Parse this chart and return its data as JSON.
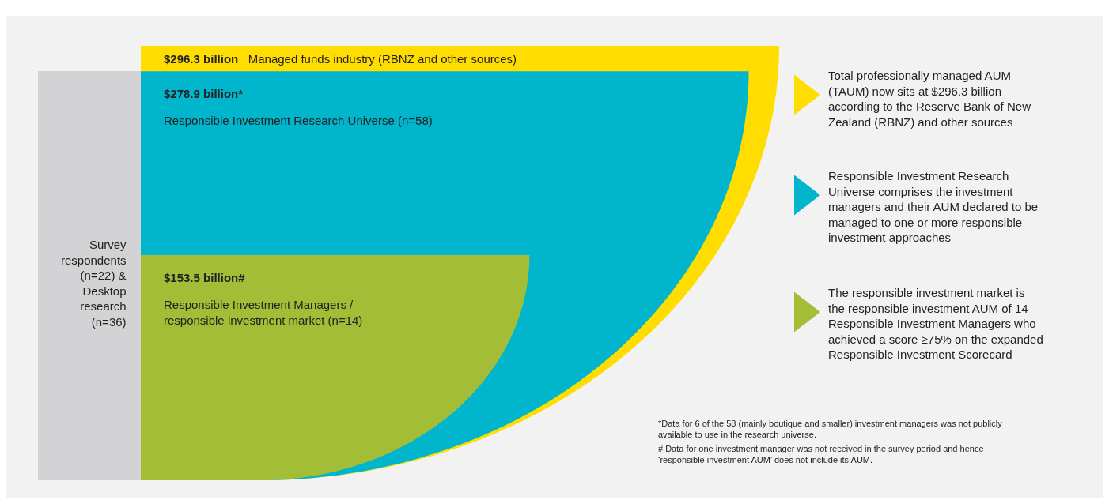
{
  "chart_data": {
    "type": "other",
    "categories": [
      "Managed funds industry (RBNZ and other sources)",
      "Responsible Investment Research Universe (n=58)",
      "Responsible Investment Managers / responsible investment market (n=14)"
    ],
    "values": [
      296.3,
      278.9,
      153.5
    ],
    "value_labels": [
      "$296.3 billion",
      "$278.9 billion*",
      "$153.5 billion#"
    ],
    "colors": [
      "#ffdd00",
      "#00b5cc",
      "#a3bd37"
    ],
    "annotations": [
      "Total professionally managed AUM (TAUM) now sits at $296.3 billion according to the Reserve Bank of New Zealand (RBNZ) and other sources",
      "Responsible Investment Research Universe comprises the investment managers and their AUM declared to be managed to one or more responsible investment approaches",
      "The responsible investment market is the responsible investment AUM of 14 Responsible Investment Managers who achieved a score ≥75% on the expanded Responsible Investment Scorecard",
      "Survey respondents (n=22) & Desktop research (n=36)",
      "*Data for 6 of the 58 (mainly boutique and smaller) investment managers was not publicly available to use in the research universe.",
      "# Data for one investment manager was not received in the survey period and hence ‘responsible investment AUM’ does not include its AUM."
    ]
  }
}
